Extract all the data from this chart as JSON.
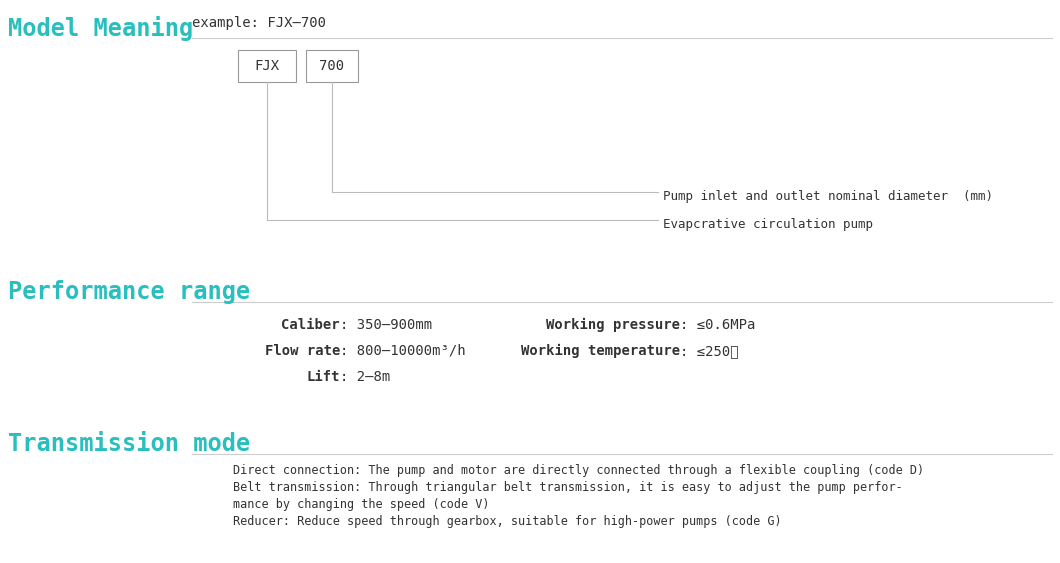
{
  "bg_color": "#ffffff",
  "cyan_color": "#29BFBF",
  "dark_color": "#333333",
  "gray_color": "#aaaaaa",
  "line_color": "#cccccc",
  "section1_title": "Model Meaning",
  "section1_example": "example: FJX—700",
  "box1_text": "FJX",
  "box2_text": "700",
  "label1": "Pump inlet and outlet nominal diameter  (mm)",
  "label2": "Evapcrative circulation pump",
  "section2_title": "Performance range",
  "perf_left": [
    [
      "Caliber",
      ": 350–900mm"
    ],
    [
      "Flow rate",
      ": 800–10000m³/h"
    ],
    [
      "Lift",
      ": 2–8m"
    ]
  ],
  "perf_right": [
    [
      "Working pressure",
      ": ≤0.6MPa"
    ],
    [
      "Working temperature",
      ": ≤250℃"
    ]
  ],
  "section3_title": "Transmission mode",
  "trans_lines": [
    "Direct connection: The pump and motor are directly connected through a flexible coupling (code D)",
    "Belt transmission: Through triangular belt transmission, it is easy to adjust the pump perfor-",
    "mance by changing the speed (code V)",
    "Reducer: Reduce speed through gearbox, suitable for high-power pumps (code G)"
  ],
  "figsize": [
    10.6,
    5.63
  ],
  "dpi": 100
}
